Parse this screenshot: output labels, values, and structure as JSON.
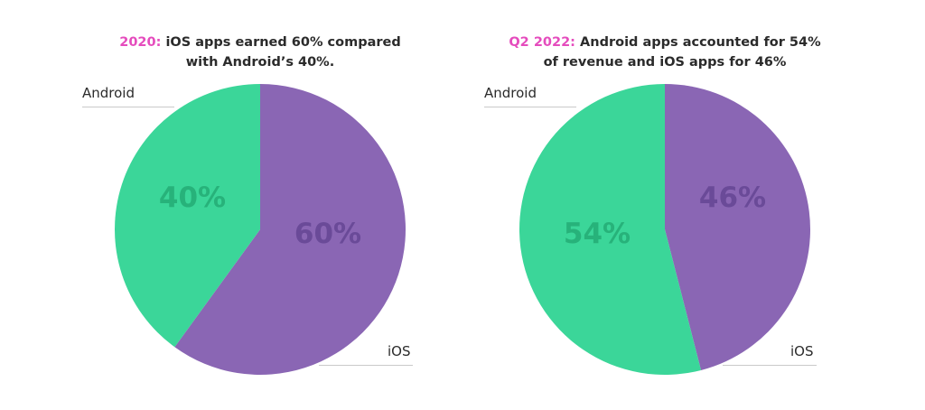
{
  "chart_data": [
    {
      "type": "pie",
      "title_highlight": "2020:",
      "title_rest": " iOS apps earned 60% compared with Android’s 40%.",
      "title_line1_rest": " iOS apps earned 60% compared",
      "title_line2": "with Android’s 40%.",
      "slices": [
        {
          "label": "Android",
          "value": 40,
          "value_label": "40%",
          "color": "#3bd699",
          "text_color": "#27b27a"
        },
        {
          "label": "iOS",
          "value": 60,
          "value_label": "60%",
          "color": "#8a66b4",
          "text_color": "#6a4a98"
        }
      ]
    },
    {
      "type": "pie",
      "title_highlight": "Q2 2022:",
      "title_rest": " Android apps accounted for 54% of revenue and iOS apps for 46%",
      "title_line1_rest": " Android apps accounted for 54%",
      "title_line2": "of revenue and iOS apps for 46%",
      "slices": [
        {
          "label": "Android",
          "value": 54,
          "value_label": "54%",
          "color": "#3bd699",
          "text_color": "#27b27a"
        },
        {
          "label": "iOS",
          "value": 46,
          "value_label": "46%",
          "color": "#8a66b4",
          "text_color": "#6a4a98"
        }
      ]
    }
  ]
}
